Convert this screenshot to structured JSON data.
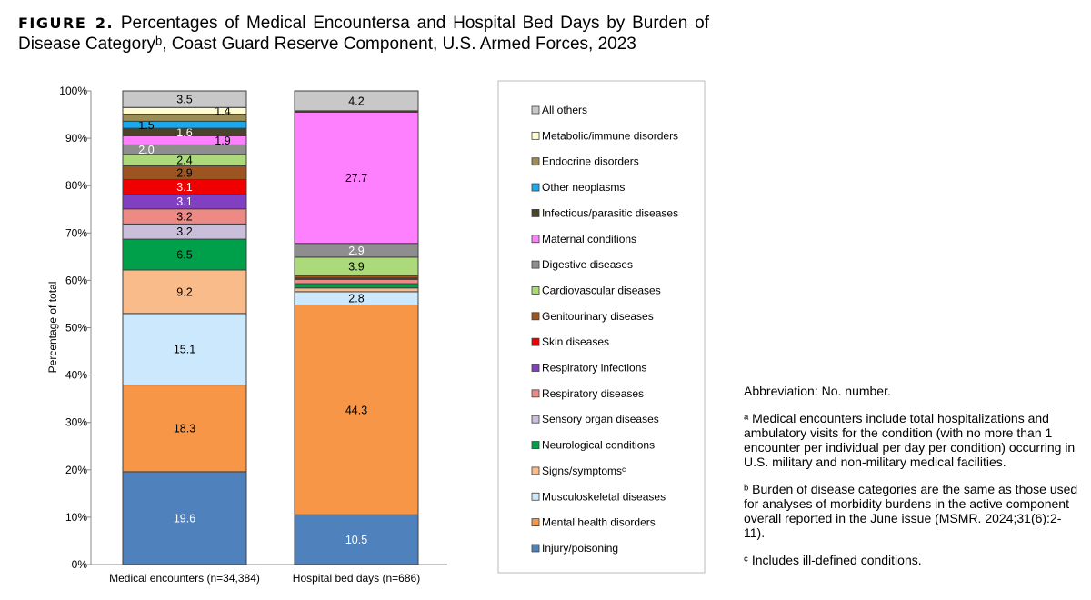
{
  "title": {
    "figure_label": "FIGURE 2.",
    "text": "Percentages of Medical Encountersa and Hospital Bed Days by Burden of Disease Categoryᵇ, Coast Guard Reserve Component, U.S. Armed Forces, 2023"
  },
  "chart_data": {
    "type": "bar",
    "stacked": true,
    "ylabel": "Percentage of total",
    "ylim": [
      0,
      100
    ],
    "yticks": [
      "0%",
      "10%",
      "20%",
      "30%",
      "40%",
      "50%",
      "60%",
      "70%",
      "80%",
      "90%",
      "100%"
    ],
    "categories": [
      "Medical encounters (n=34,384)",
      "Hospital bed days (n=686)"
    ],
    "legend_position": "right",
    "series": [
      {
        "name": "Injury/poisoning",
        "color": "#4f81bd",
        "values": [
          19.6,
          10.5
        ],
        "labels": [
          "19.6",
          "10.5"
        ],
        "label_color": "#fff"
      },
      {
        "name": "Mental health disorders",
        "color": "#f79646",
        "values": [
          18.3,
          44.3
        ],
        "labels": [
          "18.3",
          "44.3"
        ]
      },
      {
        "name": "Musculoskeletal diseases",
        "color": "#cce8fc",
        "values": [
          15.1,
          2.8
        ],
        "labels": [
          "15.1",
          "2.8"
        ]
      },
      {
        "name": "Signs/symptomsᶜ",
        "color": "#f9bb8a",
        "values": [
          9.2,
          0.8
        ],
        "labels": [
          "9.2",
          ""
        ]
      },
      {
        "name": "Neurological conditions",
        "color": "#00a04b",
        "values": [
          6.5,
          0.9
        ],
        "labels": [
          "6.5",
          ""
        ]
      },
      {
        "name": "Sensory organ diseases",
        "color": "#c9bfdb",
        "values": [
          3.2,
          0
        ],
        "labels": [
          "3.2",
          ""
        ]
      },
      {
        "name": "Respiratory diseases",
        "color": "#ee8a85",
        "values": [
          3.2,
          0.9
        ],
        "labels": [
          "3.2",
          ""
        ]
      },
      {
        "name": "Respiratory infections",
        "color": "#8040c0",
        "values": [
          3.1,
          0.1
        ],
        "labels": [
          "3.1",
          ""
        ],
        "label_color": "#fff"
      },
      {
        "name": "Skin diseases",
        "color": "#f00000",
        "values": [
          3.1,
          0.2
        ],
        "labels": [
          "3.1",
          ""
        ],
        "label_color": "#fff"
      },
      {
        "name": "Genitourinary diseases",
        "color": "#9c5521",
        "values": [
          2.9,
          0.5
        ],
        "labels": [
          "2.9",
          ""
        ]
      },
      {
        "name": "Cardiovascular diseases",
        "color": "#acd97a",
        "values": [
          2.4,
          3.9
        ],
        "labels": [
          "2.4",
          "3.9"
        ]
      },
      {
        "name": "Digestive diseases",
        "color": "#8e8e8e",
        "values": [
          2.0,
          2.9
        ],
        "labels": [
          "2.0",
          "2.9"
        ],
        "label_color": "#fff"
      },
      {
        "name": "Maternal conditions",
        "color": "#ff80ff",
        "values": [
          1.9,
          27.7
        ],
        "labels": [
          "1.9",
          "27.7"
        ]
      },
      {
        "name": "Infectious/parasitic diseases",
        "color": "#4a4329",
        "values": [
          1.6,
          0.3
        ],
        "labels": [
          "1.6",
          ""
        ],
        "label_color": "#fff"
      },
      {
        "name": "Other neoplasms",
        "color": "#1aa7ee",
        "values": [
          1.5,
          0
        ],
        "labels": [
          "1.5",
          ""
        ]
      },
      {
        "name": "Endocrine disorders",
        "color": "#9b8d56",
        "values": [
          1.5,
          0
        ],
        "labels": [
          "",
          ""
        ]
      },
      {
        "name": "Metabolic/immune disorders",
        "color": "#fffdd0",
        "values": [
          1.4,
          0
        ],
        "labels": [
          "1.4",
          ""
        ]
      },
      {
        "name": "All others",
        "color": "#c8c8c8",
        "values": [
          3.5,
          4.2
        ],
        "labels": [
          "3.5",
          "4.2"
        ]
      }
    ]
  },
  "notes": {
    "abbrev": "Abbreviation: No. number.",
    "a": "ᵃ Medical encounters include total hospitalizations and ambulatory visits for the condition (with no more than 1 encounter per individual per day per condition) occurring in U.S. military and non-military medical facilities.",
    "b": "ᵇ Burden of disease categories are the same as those used for analyses of morbidity burdens in the active component overall reported in the June issue (MSMR. 2024;31(6):2-11).",
    "c": "ᶜ Includes ill-defined conditions."
  }
}
